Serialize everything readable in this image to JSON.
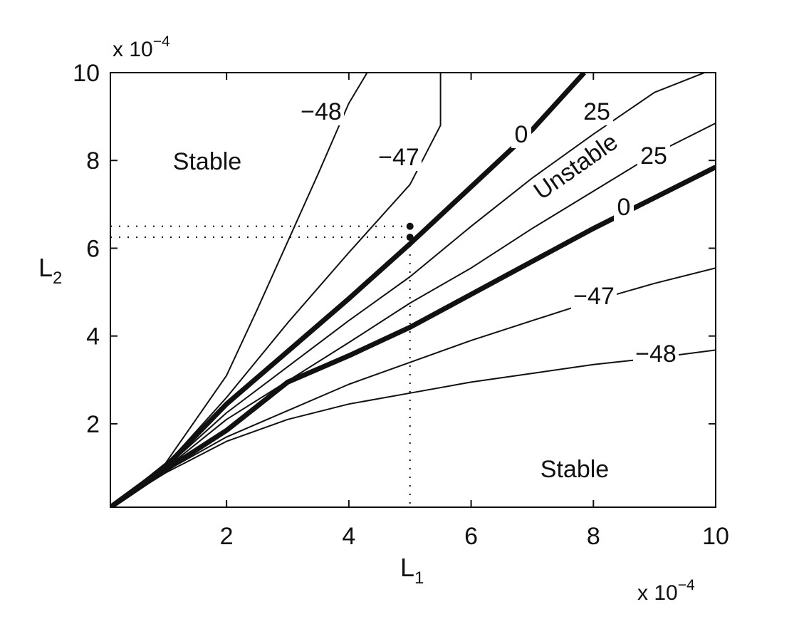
{
  "chart_data": {
    "type": "line",
    "title": "",
    "x_multiplier": {
      "base": "x 10",
      "exponent": "−4"
    },
    "y_multiplier": {
      "base": "x 10",
      "exponent": "−4"
    },
    "xlabel": {
      "main": "L",
      "sub": "1"
    },
    "ylabel": {
      "main": "L",
      "sub": "2"
    },
    "xlim": [
      0.1,
      10
    ],
    "ylim": [
      0.1,
      10
    ],
    "xticks": [
      2,
      4,
      6,
      8,
      10
    ],
    "xtick_labels": [
      "2",
      "4",
      "6",
      "8",
      "10"
    ],
    "yticks": [
      2,
      4,
      6,
      8,
      10
    ],
    "ytick_labels": [
      "2",
      "4",
      "6",
      "8",
      "10"
    ],
    "grid": false,
    "contour_label_values": [
      "−48",
      "−47",
      "0",
      "25",
      "25",
      "0",
      "−47",
      "−48"
    ],
    "contours": [
      {
        "level": "−48",
        "bold": false,
        "points": [
          [
            0.1,
            0.1
          ],
          [
            1,
            1.1
          ],
          [
            2,
            3.1
          ],
          [
            2.5,
            4.6
          ],
          [
            3,
            6.15
          ],
          [
            3.5,
            7.7
          ],
          [
            4,
            9.3
          ],
          [
            4.3,
            10
          ]
        ]
      },
      {
        "level": "−47",
        "bold": false,
        "points": [
          [
            0.1,
            0.1
          ],
          [
            1,
            1.05
          ],
          [
            2,
            2.6
          ],
          [
            3,
            4.3
          ],
          [
            4,
            5.9
          ],
          [
            5,
            7.45
          ],
          [
            5.5,
            8.8
          ],
          [
            5.5,
            10
          ]
        ]
      },
      {
        "level": "0",
        "bold": true,
        "points": [
          [
            0.1,
            0.1
          ],
          [
            1,
            1.02
          ],
          [
            2,
            2.45
          ],
          [
            3,
            3.65
          ],
          [
            4,
            4.85
          ],
          [
            5,
            6.1
          ],
          [
            6,
            7.4
          ],
          [
            7,
            8.7
          ],
          [
            7.85,
            10
          ]
        ]
      },
      {
        "level": "25",
        "bold": false,
        "points": [
          [
            0.1,
            0.1
          ],
          [
            1,
            1.0
          ],
          [
            2,
            2.25
          ],
          [
            4,
            4.35
          ],
          [
            5,
            5.35
          ],
          [
            6,
            6.5
          ],
          [
            7,
            7.6
          ],
          [
            8,
            8.6
          ],
          [
            9,
            9.55
          ],
          [
            10,
            10.1
          ]
        ]
      },
      {
        "level": "25",
        "bold": false,
        "points": [
          [
            0.1,
            0.1
          ],
          [
            1,
            0.98
          ],
          [
            2,
            2.1
          ],
          [
            4,
            3.85
          ],
          [
            5,
            4.75
          ],
          [
            6,
            5.55
          ],
          [
            7,
            6.45
          ],
          [
            8,
            7.3
          ],
          [
            9,
            8.15
          ],
          [
            10,
            8.85
          ]
        ]
      },
      {
        "level": "0",
        "bold": true,
        "points": [
          [
            0.1,
            0.1
          ],
          [
            1,
            0.95
          ],
          [
            2,
            1.85
          ],
          [
            3,
            2.95
          ],
          [
            4,
            3.55
          ],
          [
            5,
            4.2
          ],
          [
            6,
            4.95
          ],
          [
            7,
            5.7
          ],
          [
            8,
            6.45
          ],
          [
            9,
            7.15
          ],
          [
            10,
            7.85
          ]
        ]
      },
      {
        "level": "−47",
        "bold": false,
        "points": [
          [
            0.1,
            0.1
          ],
          [
            1,
            0.92
          ],
          [
            2,
            1.7
          ],
          [
            3,
            2.3
          ],
          [
            4,
            2.9
          ],
          [
            5,
            3.4
          ],
          [
            6,
            3.9
          ],
          [
            7,
            4.35
          ],
          [
            8,
            4.8
          ],
          [
            9,
            5.2
          ],
          [
            10,
            5.55
          ]
        ]
      },
      {
        "level": "−48",
        "bold": false,
        "points": [
          [
            0.1,
            0.1
          ],
          [
            1,
            0.88
          ],
          [
            2,
            1.6
          ],
          [
            3,
            2.1
          ],
          [
            4,
            2.45
          ],
          [
            5,
            2.7
          ],
          [
            6,
            2.95
          ],
          [
            7,
            3.15
          ],
          [
            8,
            3.35
          ],
          [
            9,
            3.5
          ],
          [
            10,
            3.68
          ]
        ]
      }
    ],
    "points": [
      [
        5,
        6.5
      ],
      [
        5,
        6.25
      ]
    ],
    "reference_lines": {
      "x": 5,
      "y": [
        6.5,
        6.25
      ]
    },
    "annotations": [
      {
        "text": "Stable",
        "x": 1.7,
        "y": 8.0
      },
      {
        "text": "Stable",
        "x": 7.6,
        "y": 0.9
      },
      {
        "text": "Unstable",
        "x": 7.6,
        "y": 7.2,
        "rotation": -35
      }
    ]
  }
}
